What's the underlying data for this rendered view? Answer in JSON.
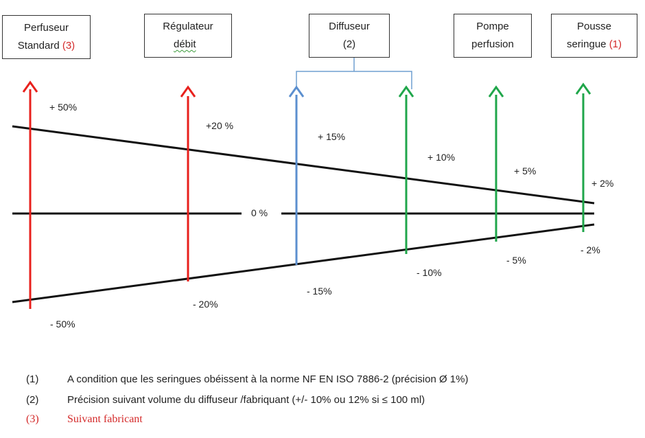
{
  "boxes": {
    "perfuseur": {
      "line1": "Perfuseur",
      "line2_text": "Standard ",
      "line2_ref": "(3)"
    },
    "regulateur": {
      "line1": "Régulateur",
      "line2": "débit"
    },
    "diffuseur": {
      "line1": "Diffuseur",
      "line2": "(2)"
    },
    "pompe": {
      "line1": "Pompe",
      "line2": "perfusion"
    },
    "pousse": {
      "line1": "Pousse",
      "line2_text": "seringue ",
      "line2_ref": "(1)"
    }
  },
  "labels": {
    "p50": "+ 50%",
    "p20": "+20 %",
    "p15": "+ 15%",
    "p10": "+ 10%",
    "p5": "+ 5%",
    "p2": "+ 2%",
    "zero": "0 %",
    "m50": "- 50%",
    "m20": "- 20%",
    "m15": "- 15%",
    "m10": "- 10%",
    "m5": "- 5%",
    "m2": "- 2%"
  },
  "notes": [
    {
      "num": "(1)",
      "text": "A condition que les seringues obéissent à la norme NF EN ISO 7886-2 (précision Ø 1%)"
    },
    {
      "num": "(2)",
      "text": "Précision suivant volume du diffuseur /fabriquant  (+/- 10%  ou 12% si  ≤ 100 ml)"
    },
    {
      "num": "(3)",
      "text": "Suivant fabricant"
    }
  ],
  "colors": {
    "red": "#e8201c",
    "blue": "#5b8fcf",
    "green": "#1fa64a",
    "bracket": "#6f9fd0"
  }
}
